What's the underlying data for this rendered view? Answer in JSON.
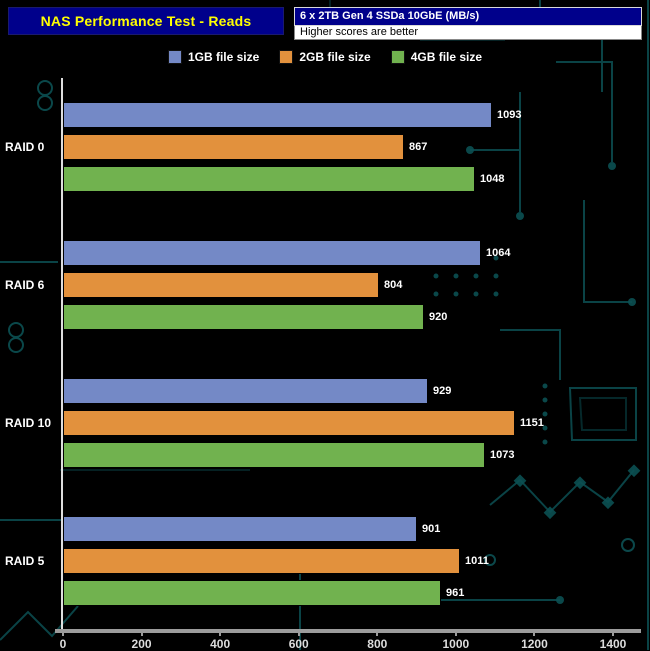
{
  "header": {
    "title": "NAS Performance Test  - Reads",
    "config_label": "6 x 2TB Gen 4 SSDa 10GbE  (MB/s)",
    "note": "Higher scores are better"
  },
  "chart_data": {
    "type": "bar",
    "orientation": "horizontal",
    "title": "NAS Performance Test - Reads",
    "categories": [
      "RAID 0",
      "RAID 6",
      "RAID 10",
      "RAID 5"
    ],
    "series": [
      {
        "name": "1GB file size",
        "color": "#7489c6",
        "values": [
          1093,
          1064,
          929,
          901
        ]
      },
      {
        "name": "2GB file size",
        "color": "#e2913d",
        "values": [
          867,
          804,
          1151,
          1011
        ]
      },
      {
        "name": "4GB file size",
        "color": "#71b24f",
        "values": [
          1048,
          920,
          1073,
          961
        ]
      }
    ],
    "xlim": [
      0,
      1400
    ],
    "xticks": [
      0,
      200,
      400,
      600,
      800,
      1000,
      1200,
      1400
    ],
    "grid": false,
    "legend_position": "top",
    "value_labels": true
  },
  "style": {
    "background": "#000000",
    "title_bg": "#00008b",
    "title_color": "#ffff00",
    "note_bg": "#ffffff",
    "axis_color": "#9c9c9c",
    "label_color": "#ffffff",
    "circuit_color": "#0c5053"
  }
}
